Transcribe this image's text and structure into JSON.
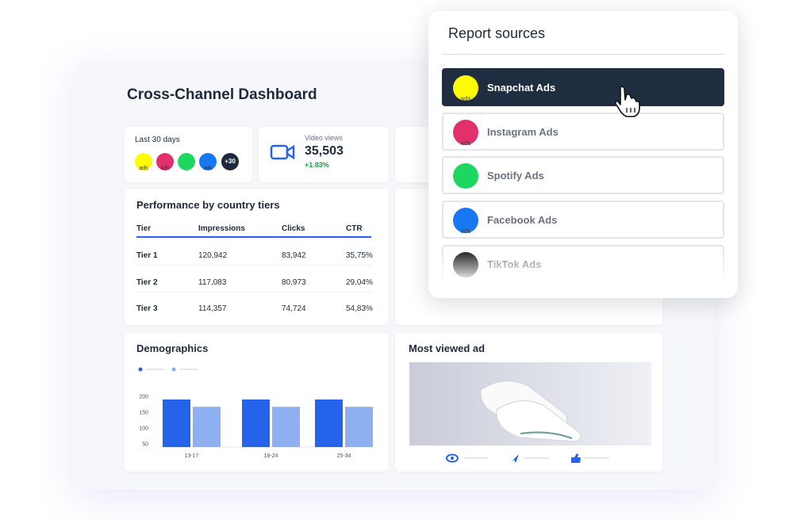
{
  "dashboard": {
    "title": "Cross-Channel Dashboard",
    "summary": {
      "period": "Last 30 days",
      "icon_label": "ads",
      "more": "+30"
    },
    "video": {
      "label": "Video views",
      "value": "35,503",
      "change": "+1.83%"
    },
    "table": {
      "title": "Performance by country tiers",
      "columns": [
        "Tier",
        "Impressions",
        "Clicks",
        "CTR"
      ],
      "rows": [
        [
          "Tier 1",
          "120,942",
          "83,942",
          "35,75%"
        ],
        [
          "Tier 2",
          "117,083",
          "80,973",
          "29,04%"
        ],
        [
          "Tier 3",
          "114,357",
          "74,724",
          "54,83%"
        ]
      ]
    },
    "demographics": {
      "type": "bar",
      "title": "Demographics",
      "categories": [
        "13-17",
        "18-24",
        "25-34"
      ],
      "series": [
        {
          "color": "#2563eb",
          "values": [
            190,
            190,
            190
          ]
        },
        {
          "color": "#8fb0f0",
          "values": [
            167,
            167,
            167
          ]
        }
      ],
      "ylim": [
        40,
        210
      ],
      "yticks": [
        200,
        150,
        100,
        50
      ]
    },
    "ad": {
      "title": "Most viewed ad"
    }
  },
  "report_sources": {
    "title": "Report sources",
    "icon_label": "ads",
    "items": [
      "Snapchat Ads",
      "Instagram Ads",
      "Spotify Ads",
      "Facebook Ads",
      "TikTok Ads"
    ],
    "selected": 0
  }
}
